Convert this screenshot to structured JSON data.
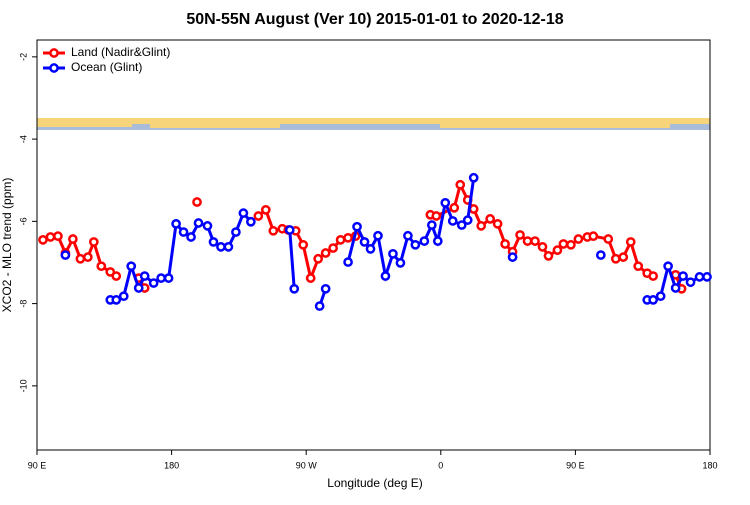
{
  "chart_data": {
    "type": "line",
    "title": "50N-55N August (Ver 10)   2015-01-01 to 2020-12-18",
    "x_label": "Longitude (deg E)",
    "y_label": "XCO2 - MLO trend (ppm)",
    "xlim": [
      90,
      540
    ],
    "xticks": [
      {
        "value": 90,
        "label": "90 E"
      },
      180,
      {
        "value": 270,
        "label": "90 W"
      },
      {
        "value": 360,
        "label": "0"
      },
      {
        "value": 450,
        "label": "90 E"
      },
      {
        "value": 540,
        "label": "180"
      }
    ],
    "ylim": [
      -11.56,
      -1.59
    ],
    "yticks": [
      -2,
      -4,
      -6,
      -8,
      -10
    ],
    "legend": "top-left",
    "series": [
      {
        "name": "Land (Nadir&Glint)",
        "color": "#ff0000",
        "x": [
          94,
          99,
          104,
          109,
          114,
          119,
          124,
          128,
          133,
          139,
          143,
          null,
          158,
          162,
          null,
          197,
          null,
          238,
          243,
          248,
          254,
          258,
          263,
          268,
          273,
          278,
          283,
          288,
          293,
          298,
          303,
          null,
          353,
          357,
          369,
          373,
          378,
          382,
          387,
          393,
          398,
          403,
          408,
          413,
          418,
          423,
          428,
          432,
          438,
          442,
          447,
          452,
          458,
          462,
          472,
          477,
          482,
          487,
          492,
          498,
          502,
          null,
          517,
          521
        ],
        "values": [
          -6.45,
          -6.38,
          -6.36,
          -6.77,
          -6.43,
          -6.91,
          -6.87,
          -6.5,
          -7.09,
          -7.23,
          -7.33,
          null,
          -7.38,
          -7.62,
          null,
          -5.53,
          null,
          -5.87,
          -5.72,
          -6.23,
          -6.18,
          -6.21,
          -6.23,
          -6.57,
          -7.38,
          -6.91,
          -6.77,
          -6.65,
          -6.45,
          -6.4,
          -6.36,
          null,
          -5.84,
          -5.87,
          -5.67,
          -5.11,
          -5.48,
          -5.7,
          -6.11,
          -5.94,
          -6.06,
          -6.55,
          -6.74,
          -6.33,
          -6.48,
          -6.48,
          -6.62,
          -6.84,
          -6.7,
          -6.55,
          -6.57,
          -6.43,
          -6.38,
          -6.36,
          -6.43,
          -6.91,
          -6.87,
          -6.5,
          -7.09,
          -7.26,
          -7.33,
          null,
          -7.3,
          -7.64
        ]
      },
      {
        "name": "Ocean (Glint)",
        "color": "#0000ff",
        "x": [
          109,
          null,
          139,
          143,
          148,
          153,
          158,
          162,
          168,
          173,
          178,
          183,
          188,
          193,
          198,
          204,
          208,
          213,
          218,
          223,
          228,
          233,
          null,
          259,
          262,
          null,
          279,
          283,
          null,
          298,
          304,
          309,
          313,
          318,
          323,
          328,
          333,
          338,
          343,
          349,
          354,
          358,
          363,
          368,
          374,
          378,
          382,
          null,
          408,
          null,
          467,
          null,
          498,
          502,
          507,
          512,
          517,
          522,
          527,
          533,
          538
        ],
        "values": [
          -6.82,
          null,
          -7.91,
          -7.91,
          -7.82,
          -7.09,
          -7.62,
          -7.33,
          -7.5,
          -7.38,
          -7.38,
          -6.06,
          -6.26,
          -6.38,
          -6.04,
          -6.11,
          -6.5,
          -6.62,
          -6.62,
          -6.26,
          -5.8,
          -6.01,
          null,
          -6.21,
          -7.64,
          null,
          -8.06,
          -7.64,
          null,
          -6.99,
          -6.13,
          -6.5,
          -6.67,
          -6.35,
          -7.33,
          -6.79,
          -7.01,
          -6.35,
          -6.57,
          -6.48,
          -6.09,
          -6.48,
          -5.55,
          -5.99,
          -6.09,
          -5.97,
          -4.94,
          null,
          -6.87,
          null,
          -6.82,
          null,
          -7.91,
          -7.91,
          -7.82,
          -7.09,
          -7.62,
          -7.33,
          -7.48,
          -7.35,
          -7.35
        ]
      }
    ]
  }
}
